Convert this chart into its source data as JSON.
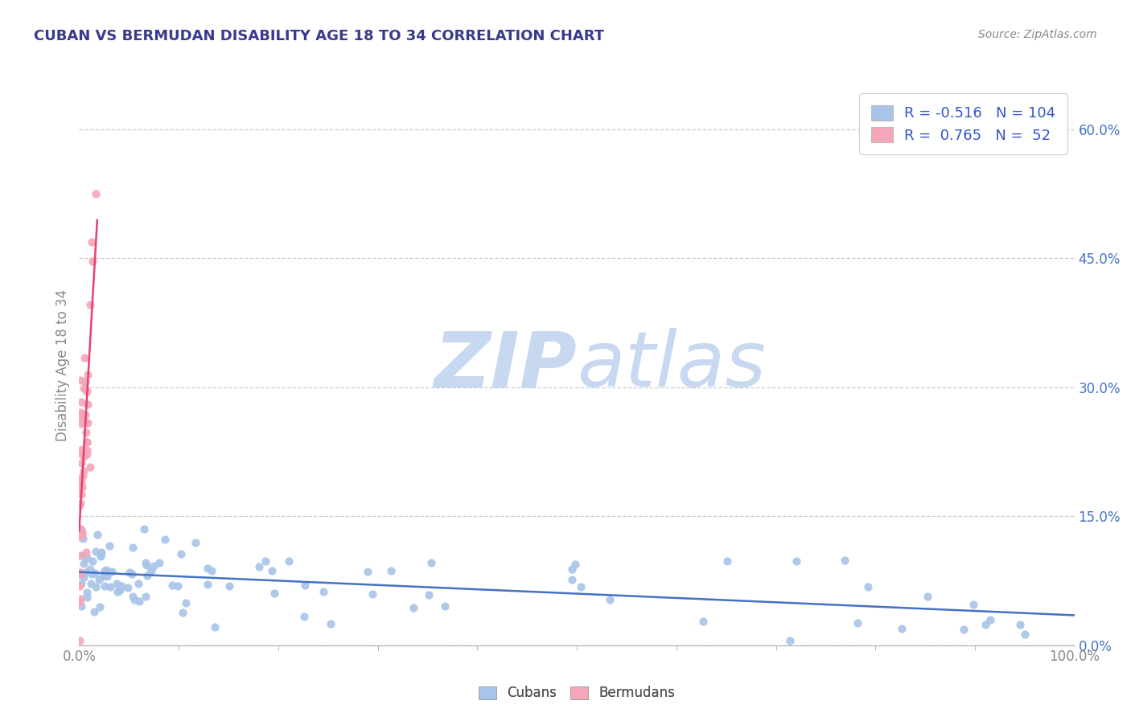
{
  "title": "CUBAN VS BERMUDAN DISABILITY AGE 18 TO 34 CORRELATION CHART",
  "source": "Source: ZipAtlas.com",
  "ylabel": "Disability Age 18 to 34",
  "xlim": [
    0.0,
    1.0
  ],
  "ylim": [
    0.0,
    0.65
  ],
  "xtick_positions": [
    0.0,
    1.0
  ],
  "xtick_labels": [
    "0.0%",
    "100.0%"
  ],
  "yticks_right": [
    0.0,
    0.15,
    0.3,
    0.45,
    0.6
  ],
  "ytick_labels_right": [
    "0.0%",
    "15.0%",
    "30.0%",
    "45.0%",
    "60.0%"
  ],
  "blue_color": "#a8c4e8",
  "pink_color": "#f4a7b9",
  "blue_line_color": "#4472c4",
  "pink_line_color": "#e8406e",
  "title_color": "#3a3a8c",
  "r_blue": -0.516,
  "n_blue": 104,
  "r_pink": 0.765,
  "n_pink": 52,
  "watermark_zip": "ZIP",
  "watermark_atlas": "atlas",
  "watermark_color_zip": "#c8d8f0",
  "watermark_color_atlas": "#c8d8f0",
  "background_color": "#ffffff",
  "grid_color": "#cccccc",
  "source_color": "#888888",
  "tick_color": "#888888",
  "legend_text_color": "#3355cc"
}
